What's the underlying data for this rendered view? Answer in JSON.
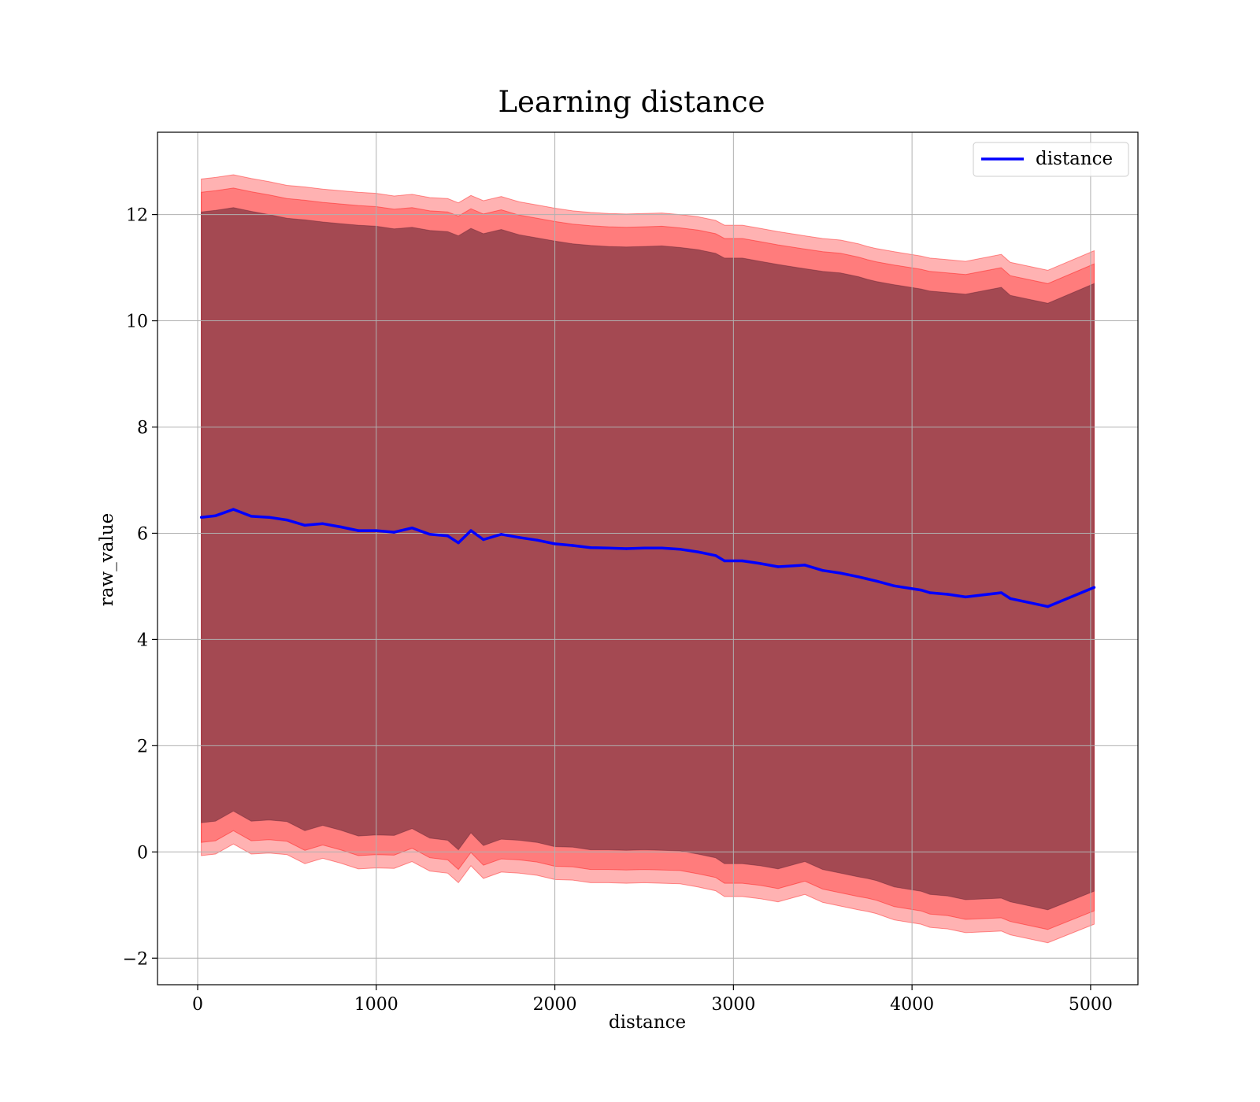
{
  "chart_data": {
    "type": "line",
    "title": "Learning distance",
    "xlabel": "distance",
    "ylabel": "raw_value",
    "xlim": [
      -225,
      5265
    ],
    "ylim": [
      -2.5,
      13.55
    ],
    "xticks": [
      0,
      1000,
      2000,
      3000,
      4000,
      5000
    ],
    "xtick_labels": [
      "0",
      "1000",
      "2000",
      "3000",
      "4000",
      "5000"
    ],
    "yticks": [
      -2,
      0,
      2,
      4,
      6,
      8,
      10,
      12
    ],
    "ytick_labels": [
      "−2",
      "0",
      "2",
      "4",
      "6",
      "8",
      "10",
      "12"
    ],
    "grid": true,
    "legend": {
      "placement": "top-right",
      "entries": [
        "distance"
      ]
    },
    "colors": {
      "line": "#0000ff",
      "band": "#ff0000",
      "band_inner": "#5a1f30"
    },
    "x": [
      20,
      100,
      200,
      300,
      400,
      500,
      600,
      700,
      800,
      900,
      1000,
      1100,
      1200,
      1300,
      1400,
      1460,
      1530,
      1600,
      1700,
      1800,
      1900,
      2000,
      2100,
      2200,
      2300,
      2400,
      2500,
      2600,
      2700,
      2800,
      2900,
      2950,
      3050,
      3150,
      3250,
      3400,
      3500,
      3600,
      3700,
      3750,
      3800,
      3900,
      4050,
      4100,
      4200,
      4300,
      4500,
      4550,
      4760,
      5020
    ],
    "series": [
      {
        "name": "distance",
        "values": [
          6.3,
          6.33,
          6.45,
          6.32,
          6.3,
          6.25,
          6.15,
          6.18,
          6.12,
          6.05,
          6.05,
          6.02,
          6.1,
          5.98,
          5.95,
          5.82,
          6.05,
          5.88,
          5.98,
          5.92,
          5.87,
          5.8,
          5.77,
          5.73,
          5.72,
          5.71,
          5.72,
          5.72,
          5.7,
          5.65,
          5.58,
          5.48,
          5.48,
          5.43,
          5.37,
          5.4,
          5.3,
          5.25,
          5.18,
          5.14,
          5.1,
          5.01,
          4.93,
          4.88,
          4.85,
          4.8,
          4.88,
          4.77,
          4.62,
          4.98
        ]
      }
    ],
    "bands": [
      {
        "upper": [
          12.67,
          12.7,
          12.75,
          12.68,
          12.62,
          12.55,
          12.52,
          12.48,
          12.45,
          12.42,
          12.4,
          12.35,
          12.38,
          12.32,
          12.3,
          12.22,
          12.36,
          12.26,
          12.34,
          12.24,
          12.18,
          12.12,
          12.07,
          12.04,
          12.02,
          12.01,
          12.02,
          12.03,
          12.0,
          11.96,
          11.89,
          11.8,
          11.8,
          11.74,
          11.68,
          11.6,
          11.55,
          11.52,
          11.45,
          11.4,
          11.36,
          11.3,
          11.22,
          11.18,
          11.15,
          11.12,
          11.25,
          11.1,
          10.95,
          11.32
        ],
        "lower": [
          -0.07,
          -0.04,
          0.15,
          -0.04,
          -0.02,
          -0.05,
          -0.22,
          -0.12,
          -0.21,
          -0.32,
          -0.3,
          -0.31,
          -0.18,
          -0.36,
          -0.4,
          -0.58,
          -0.26,
          -0.5,
          -0.38,
          -0.4,
          -0.44,
          -0.52,
          -0.53,
          -0.58,
          -0.58,
          -0.59,
          -0.58,
          -0.59,
          -0.6,
          -0.66,
          -0.73,
          -0.84,
          -0.84,
          -0.88,
          -0.94,
          -0.8,
          -0.95,
          -1.02,
          -1.09,
          -1.12,
          -1.16,
          -1.28,
          -1.36,
          -1.42,
          -1.45,
          -1.52,
          -1.49,
          -1.56,
          -1.71,
          -1.36
        ]
      },
      {
        "upper": [
          12.42,
          12.45,
          12.5,
          12.43,
          12.37,
          12.3,
          12.27,
          12.23,
          12.2,
          12.17,
          12.15,
          12.1,
          12.13,
          12.07,
          12.05,
          11.97,
          12.11,
          12.01,
          12.09,
          11.99,
          11.93,
          11.87,
          11.82,
          11.79,
          11.77,
          11.76,
          11.77,
          11.78,
          11.75,
          11.71,
          11.64,
          11.55,
          11.55,
          11.49,
          11.43,
          11.35,
          11.3,
          11.27,
          11.2,
          11.15,
          11.11,
          11.05,
          10.97,
          10.93,
          10.9,
          10.87,
          11.0,
          10.85,
          10.7,
          11.07
        ],
        "lower": [
          0.18,
          0.21,
          0.4,
          0.21,
          0.23,
          0.2,
          0.03,
          0.13,
          0.04,
          -0.07,
          -0.05,
          -0.06,
          0.07,
          -0.11,
          -0.15,
          -0.33,
          -0.01,
          -0.25,
          -0.13,
          -0.15,
          -0.19,
          -0.27,
          -0.28,
          -0.33,
          -0.33,
          -0.34,
          -0.33,
          -0.34,
          -0.35,
          -0.41,
          -0.48,
          -0.59,
          -0.59,
          -0.63,
          -0.69,
          -0.55,
          -0.7,
          -0.77,
          -0.84,
          -0.87,
          -0.91,
          -1.03,
          -1.11,
          -1.17,
          -1.2,
          -1.27,
          -1.24,
          -1.31,
          -1.46,
          -1.11
        ]
      },
      {
        "upper": [
          12.05,
          12.08,
          12.13,
          12.06,
          12.0,
          11.93,
          11.9,
          11.86,
          11.83,
          11.8,
          11.78,
          11.73,
          11.76,
          11.7,
          11.68,
          11.6,
          11.74,
          11.64,
          11.72,
          11.62,
          11.56,
          11.5,
          11.45,
          11.42,
          11.4,
          11.39,
          11.4,
          11.41,
          11.38,
          11.34,
          11.27,
          11.18,
          11.18,
          11.12,
          11.06,
          10.98,
          10.93,
          10.9,
          10.83,
          10.78,
          10.74,
          10.68,
          10.6,
          10.56,
          10.53,
          10.5,
          10.63,
          10.48,
          10.33,
          10.7
        ],
        "lower": [
          0.55,
          0.58,
          0.77,
          0.58,
          0.6,
          0.57,
          0.4,
          0.5,
          0.41,
          0.3,
          0.32,
          0.31,
          0.44,
          0.26,
          0.22,
          0.04,
          0.36,
          0.12,
          0.24,
          0.22,
          0.18,
          0.1,
          0.09,
          0.04,
          0.04,
          0.03,
          0.04,
          0.03,
          0.02,
          -0.04,
          -0.11,
          -0.22,
          -0.22,
          -0.26,
          -0.32,
          -0.18,
          -0.33,
          -0.4,
          -0.47,
          -0.5,
          -0.54,
          -0.66,
          -0.74,
          -0.8,
          -0.83,
          -0.9,
          -0.87,
          -0.94,
          -1.09,
          -0.74
        ]
      }
    ]
  }
}
